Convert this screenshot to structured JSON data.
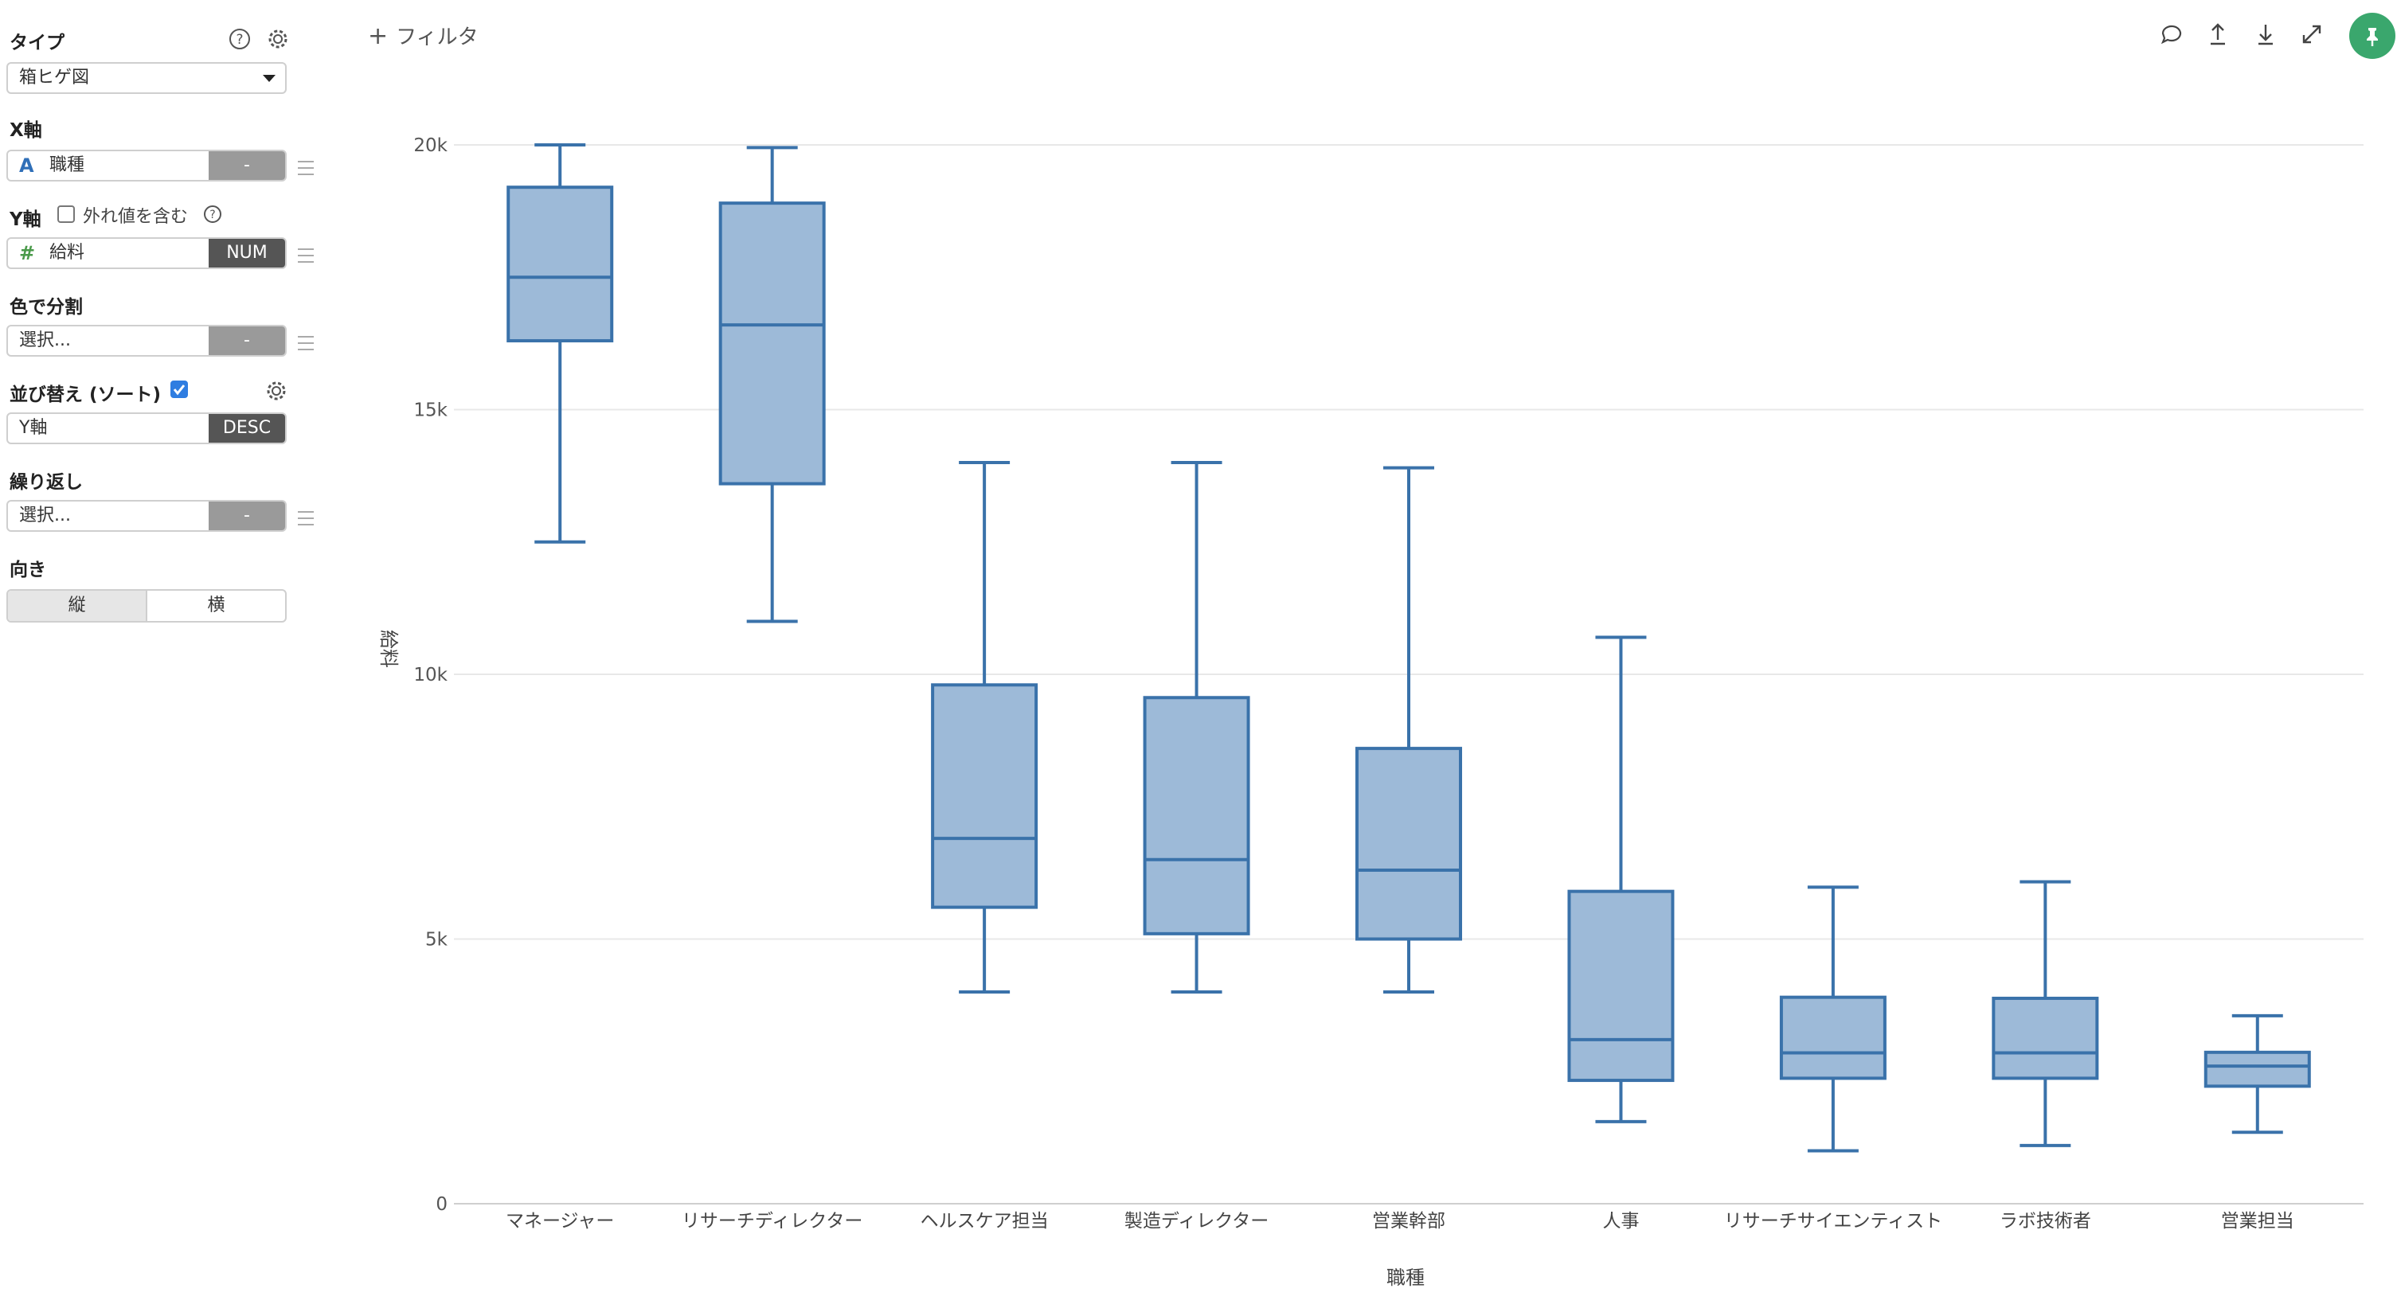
{
  "sidebar": {
    "type_label": "タイプ",
    "type_value": "箱ヒゲ図",
    "x_label": "X軸",
    "x_field": "職種",
    "x_tag": "-",
    "y_label": "Y軸",
    "y_outlier_label": "外れ値を含む",
    "y_field": "給料",
    "y_tag": "NUM",
    "color_label": "色で分割",
    "color_placeholder": "選択...",
    "color_tag": "-",
    "sort_label": "並び替え (ソート)",
    "sort_field": "Y軸",
    "sort_tag": "DESC",
    "repeat_label": "繰り返し",
    "repeat_placeholder": "選択...",
    "repeat_tag": "-",
    "orientation_label": "向き",
    "orientation_options": [
      "縦",
      "横"
    ],
    "orientation_selected": "縦"
  },
  "toolbar": {
    "filter_label": "フィルタ",
    "icons": [
      "comment-icon",
      "upload-icon",
      "download-icon",
      "expand-icon",
      "pin-icon"
    ]
  },
  "colors": {
    "box_fill": "#9dbad8",
    "box_stroke": "#3a72aa",
    "pin_bg": "#3aa76d",
    "accent": "#2f7de1"
  },
  "chart_data": {
    "type": "boxplot",
    "xlabel": "職種",
    "ylabel": "給料",
    "ylim": [
      0,
      20000
    ],
    "yticks": [
      "0",
      "5k",
      "10k",
      "15k",
      "20k"
    ],
    "ytick_values": [
      0,
      5000,
      10000,
      15000,
      20000
    ],
    "grid": true,
    "categories": [
      "マネージャー",
      "リサーチディレクター",
      "ヘルスケア担当",
      "製造ディレクター",
      "営業幹部",
      "人事",
      "リサーチサイエンティスト",
      "ラボ技術者",
      "営業担当"
    ],
    "boxes": [
      {
        "min": 12500,
        "q1": 16300,
        "median": 17500,
        "q3": 19200,
        "max": 20000
      },
      {
        "min": 11000,
        "q1": 13600,
        "median": 16600,
        "q3": 18900,
        "max": 19950
      },
      {
        "min": 4000,
        "q1": 5600,
        "median": 6900,
        "q3": 9800,
        "max": 14000
      },
      {
        "min": 4000,
        "q1": 5100,
        "median": 6500,
        "q3": 9560,
        "max": 14000
      },
      {
        "min": 4000,
        "q1": 5000,
        "median": 6300,
        "q3": 8600,
        "max": 13900
      },
      {
        "min": 1550,
        "q1": 2330,
        "median": 3100,
        "q3": 5900,
        "max": 10700
      },
      {
        "min": 1000,
        "q1": 2370,
        "median": 2850,
        "q3": 3900,
        "max": 5980
      },
      {
        "min": 1100,
        "q1": 2370,
        "median": 2850,
        "q3": 3880,
        "max": 6080
      },
      {
        "min": 1350,
        "q1": 2220,
        "median": 2600,
        "q3": 2860,
        "max": 3550
      }
    ]
  }
}
